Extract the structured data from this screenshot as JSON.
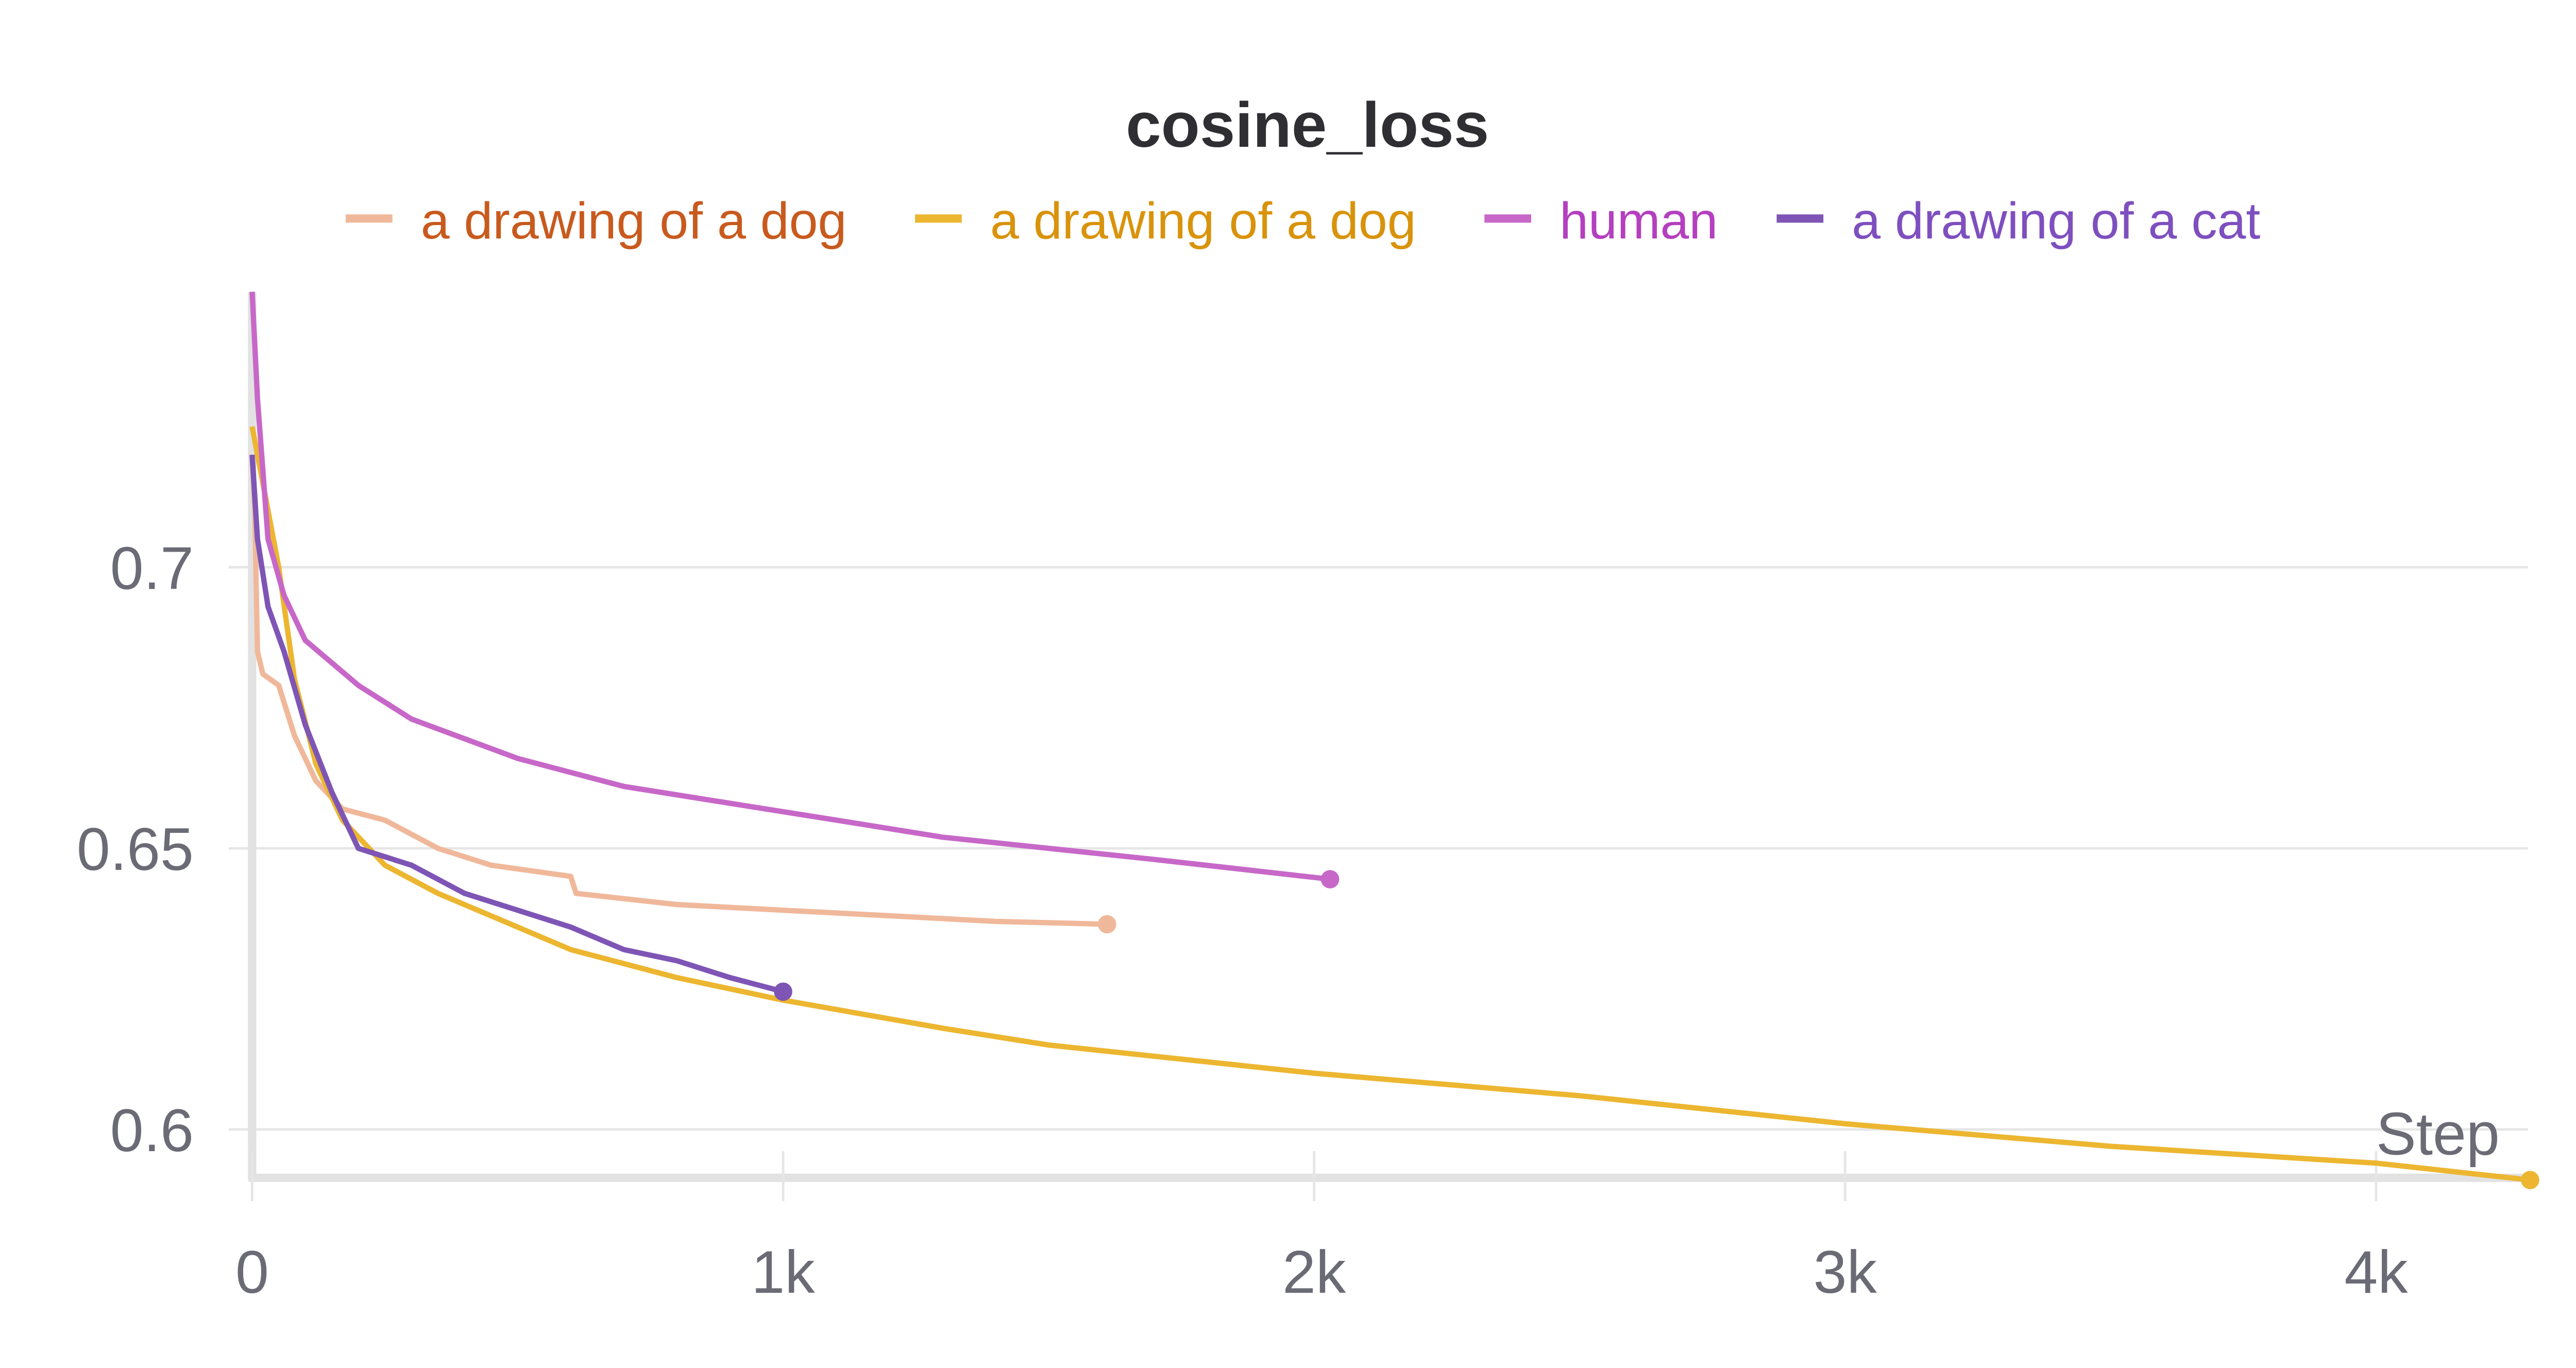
{
  "chart_data": {
    "type": "line",
    "title": "cosine_loss",
    "xlabel": "Step",
    "ylabel": "",
    "xlim": [
      0,
      4300
    ],
    "ylim": [
      0.591,
      0.749
    ],
    "grid": true,
    "legend_placement": "top-center",
    "x_ticks": [
      {
        "value": 0,
        "label": "0"
      },
      {
        "value": 1000,
        "label": "1k"
      },
      {
        "value": 2000,
        "label": "2k"
      },
      {
        "value": 3000,
        "label": "3k"
      },
      {
        "value": 4000,
        "label": "4k"
      }
    ],
    "y_ticks": [
      {
        "value": 0.6,
        "label": "0.6"
      },
      {
        "value": 0.65,
        "label": "0.65"
      },
      {
        "value": 0.7,
        "label": "0.7"
      }
    ],
    "series": [
      {
        "name": "a drawing of a dog",
        "color": "#f0b89a",
        "label_color": "#c85a1e",
        "points": [
          [
            0,
            0.72
          ],
          [
            5,
            0.71
          ],
          [
            10,
            0.685
          ],
          [
            20,
            0.681
          ],
          [
            50,
            0.679
          ],
          [
            80,
            0.67
          ],
          [
            120,
            0.662
          ],
          [
            170,
            0.657
          ],
          [
            250,
            0.655
          ],
          [
            350,
            0.65
          ],
          [
            450,
            0.647
          ],
          [
            600,
            0.645
          ],
          [
            610,
            0.642
          ],
          [
            800,
            0.64
          ],
          [
            1000,
            0.639
          ],
          [
            1200,
            0.638
          ],
          [
            1400,
            0.637
          ],
          [
            1610,
            0.6365
          ]
        ]
      },
      {
        "name": "a drawing of a dog",
        "color": "#ecb630",
        "label_color": "#d9930b",
        "points": [
          [
            0,
            0.725
          ],
          [
            20,
            0.715
          ],
          [
            50,
            0.7
          ],
          [
            80,
            0.68
          ],
          [
            120,
            0.665
          ],
          [
            170,
            0.655
          ],
          [
            250,
            0.647
          ],
          [
            350,
            0.642
          ],
          [
            500,
            0.636
          ],
          [
            600,
            0.632
          ],
          [
            800,
            0.627
          ],
          [
            1000,
            0.623
          ],
          [
            1300,
            0.618
          ],
          [
            1500,
            0.615
          ],
          [
            2000,
            0.61
          ],
          [
            2500,
            0.606
          ],
          [
            3000,
            0.601
          ],
          [
            3500,
            0.597
          ],
          [
            4000,
            0.594
          ],
          [
            4290,
            0.591
          ]
        ]
      },
      {
        "name": "human",
        "color": "#c768c8",
        "label_color": "#b43fbf",
        "points": [
          [
            0,
            0.749
          ],
          [
            10,
            0.73
          ],
          [
            30,
            0.705
          ],
          [
            60,
            0.695
          ],
          [
            100,
            0.687
          ],
          [
            200,
            0.679
          ],
          [
            300,
            0.673
          ],
          [
            500,
            0.666
          ],
          [
            700,
            0.661
          ],
          [
            900,
            0.658
          ],
          [
            1100,
            0.655
          ],
          [
            1300,
            0.652
          ],
          [
            1500,
            0.65
          ],
          [
            1700,
            0.648
          ],
          [
            2030,
            0.6445
          ]
        ]
      },
      {
        "name": "a drawing of a cat",
        "color": "#7e55b5",
        "label_color": "#7e4fbf",
        "points": [
          [
            0,
            0.72
          ],
          [
            10,
            0.705
          ],
          [
            30,
            0.693
          ],
          [
            60,
            0.685
          ],
          [
            100,
            0.672
          ],
          [
            150,
            0.66
          ],
          [
            200,
            0.65
          ],
          [
            300,
            0.647
          ],
          [
            400,
            0.642
          ],
          [
            500,
            0.639
          ],
          [
            600,
            0.636
          ],
          [
            700,
            0.632
          ],
          [
            800,
            0.63
          ],
          [
            900,
            0.627
          ],
          [
            1000,
            0.6245
          ]
        ]
      }
    ]
  }
}
